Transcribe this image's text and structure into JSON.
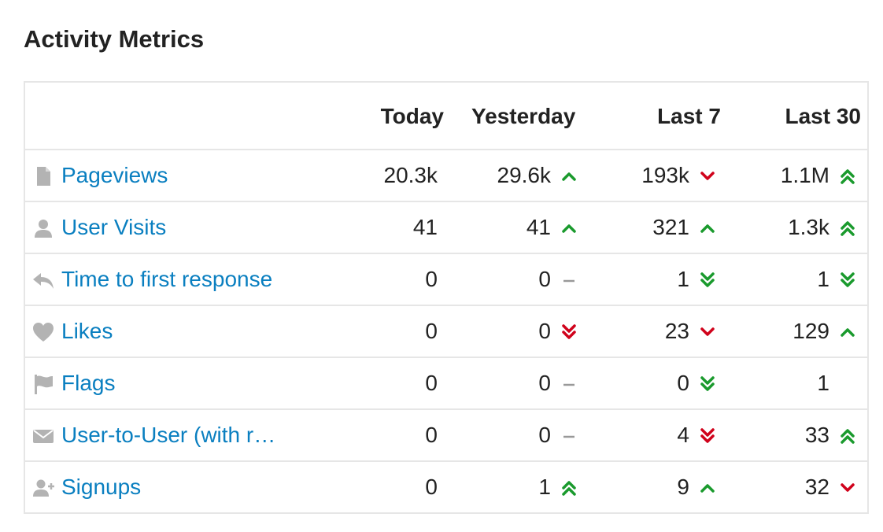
{
  "title": "Activity Metrics",
  "columns": {
    "today": "Today",
    "yesterday": "Yesterday",
    "last7": "Last 7",
    "last30": "Last 30"
  },
  "colors": {
    "link": "#0a7fc0",
    "trend_up": "#1a9a2d",
    "trend_down": "#d0021b",
    "neutral": "#999999",
    "icon": "#b3b3b3"
  },
  "rows": [
    {
      "icon": "file-icon",
      "label": "Pageviews",
      "today": "20.3k",
      "yesterday": "29.6k",
      "yesterday_trend": "up",
      "last7": "193k",
      "last7_trend": "down",
      "last30": "1.1M",
      "last30_trend": "double-up"
    },
    {
      "icon": "user-icon",
      "label": "User Visits",
      "today": "41",
      "yesterday": "41",
      "yesterday_trend": "up",
      "last7": "321",
      "last7_trend": "up",
      "last30": "1.3k",
      "last30_trend": "double-up"
    },
    {
      "icon": "reply-icon",
      "label": "Time to first response",
      "today": "0",
      "yesterday": "0",
      "yesterday_trend": "neutral",
      "last7": "1",
      "last7_trend": "double-down-good",
      "last30": "1",
      "last30_trend": "double-down-good"
    },
    {
      "icon": "heart-icon",
      "label": "Likes",
      "today": "0",
      "yesterday": "0",
      "yesterday_trend": "double-down",
      "last7": "23",
      "last7_trend": "down",
      "last30": "129",
      "last30_trend": "up"
    },
    {
      "icon": "flag-icon",
      "label": "Flags",
      "today": "0",
      "yesterday": "0",
      "yesterday_trend": "neutral",
      "last7": "0",
      "last7_trend": "double-down-good",
      "last30": "1",
      "last30_trend": "none"
    },
    {
      "icon": "envelope-icon",
      "label": "User-to-User (with r…",
      "today": "0",
      "yesterday": "0",
      "yesterday_trend": "neutral",
      "last7": "4",
      "last7_trend": "double-down",
      "last30": "33",
      "last30_trend": "double-up"
    },
    {
      "icon": "user-plus-icon",
      "label": "Signups",
      "today": "0",
      "yesterday": "1",
      "yesterday_trend": "double-up",
      "last7": "9",
      "last7_trend": "up",
      "last30": "32",
      "last30_trend": "down"
    }
  ]
}
